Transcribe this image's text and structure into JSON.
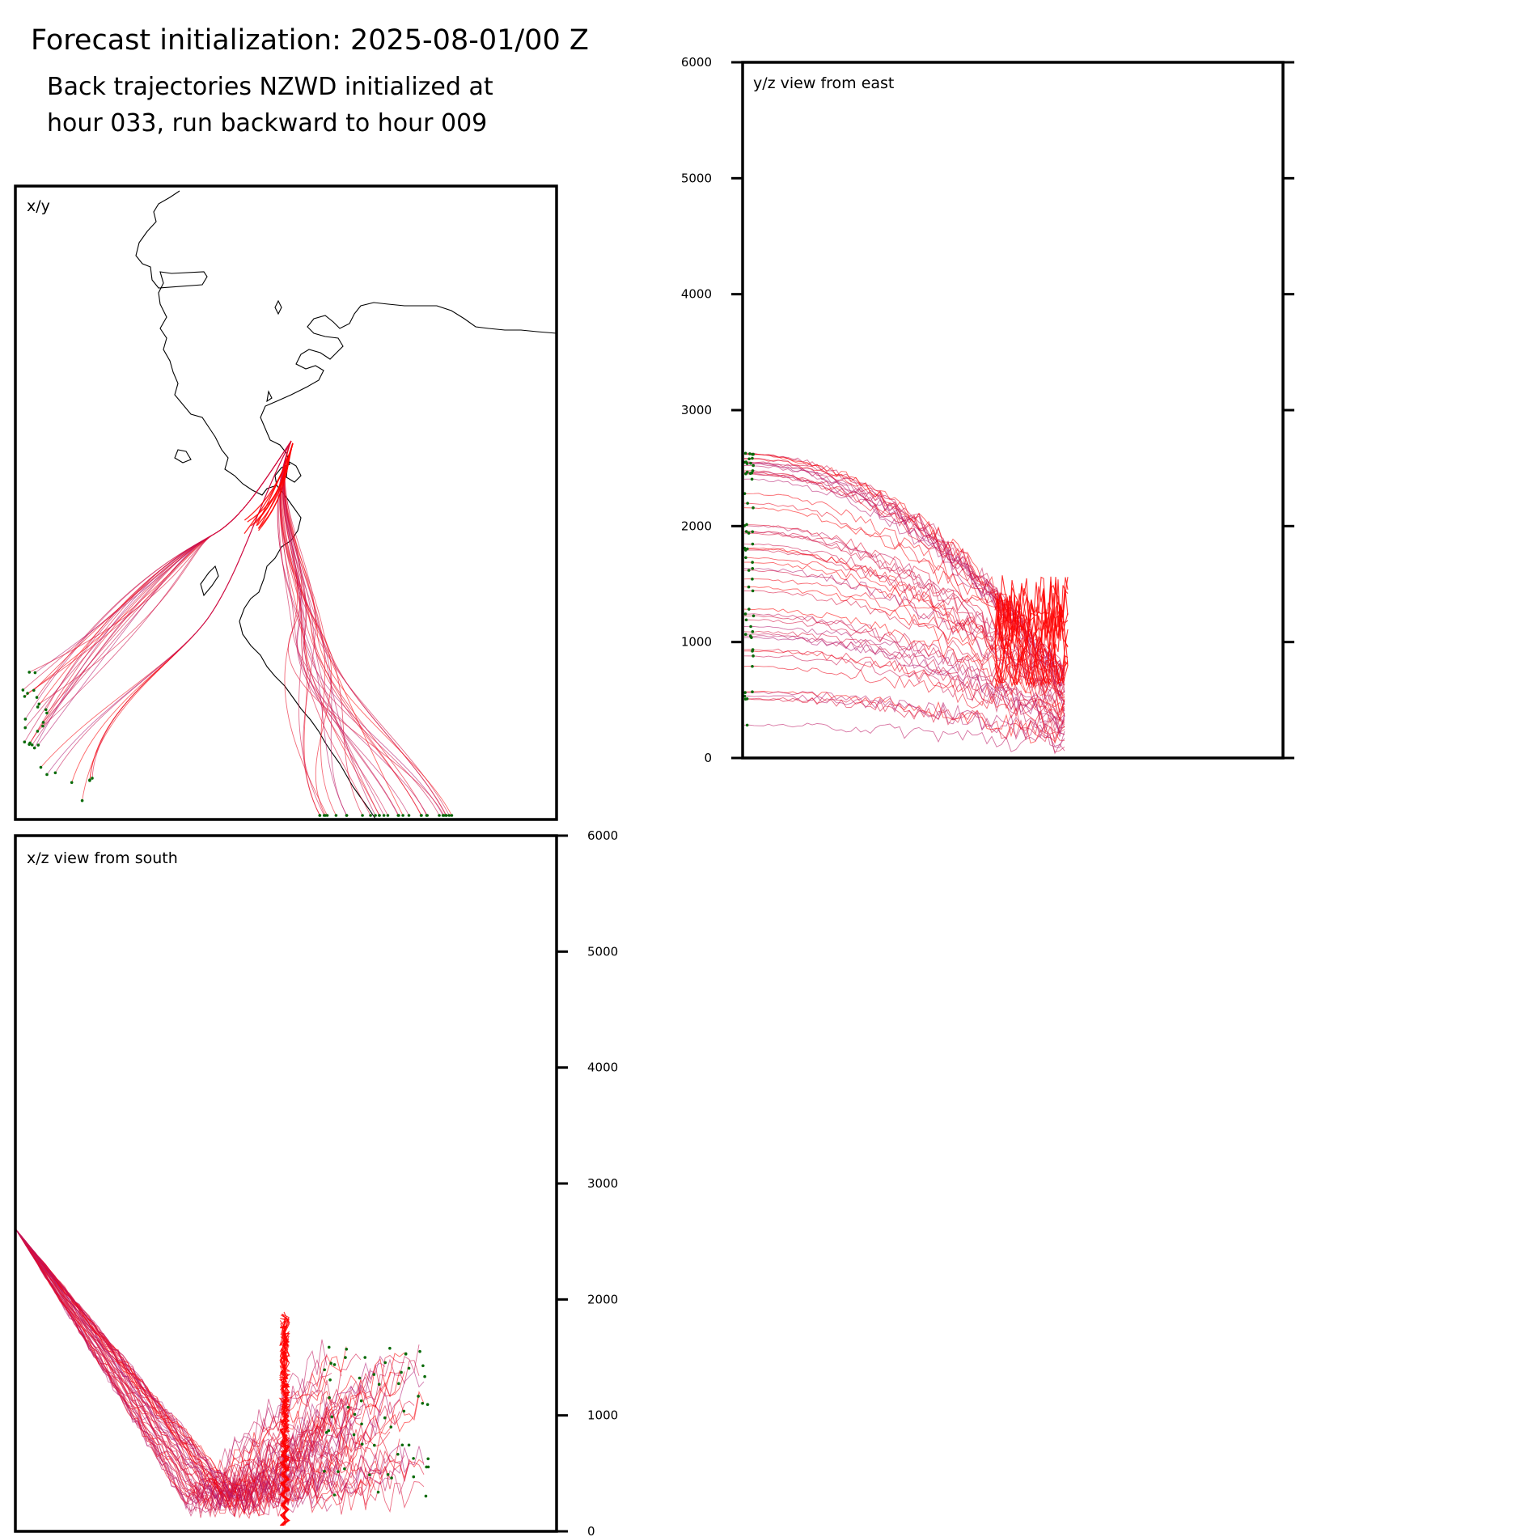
{
  "title": "Forecast initialization: 2025-08-01/00 Z",
  "subtitle_line1": "Back trajectories NZWD initialized at",
  "subtitle_line2": "hour 033, run backward to hour 009",
  "colors": {
    "trajectory_recent": "#ff0000",
    "trajectory_old": "#a0208c",
    "start_marker": "#0a6b0a",
    "coastline": "#000000",
    "axes": "#000000"
  },
  "chart_data": [
    {
      "type": "line",
      "panel": "x/y",
      "label": "x/y",
      "axes_ticks_shown": false,
      "layers": [
        "coastline",
        "trajectories",
        "start-markers"
      ],
      "trajectory_summary": "about 60 back trajectories converging on NZWD; color fades from red (recent) to purple (older)"
    },
    {
      "type": "line",
      "panel": "y/z",
      "label": "y/z view from east",
      "ylim": [
        0,
        6000
      ],
      "yticks": [
        0,
        1000,
        2000,
        3000,
        4000,
        5000,
        6000
      ],
      "ytick_labels": [
        "0",
        "1000",
        "2000",
        "3000",
        "4000",
        "5000",
        "6000"
      ],
      "ylabel_side": "left",
      "height_range_of_trajectories": [
        30,
        2800
      ]
    },
    {
      "type": "line",
      "panel": "x/z",
      "label": "x/z view from south",
      "ylim": [
        0,
        6000
      ],
      "yticks": [
        0,
        1000,
        2000,
        3000,
        4000,
        5000,
        6000
      ],
      "ytick_labels": [
        "0",
        "1000",
        "2000",
        "3000",
        "4000",
        "5000",
        "6000"
      ],
      "ylabel_side": "right",
      "height_range_of_trajectories": [
        30,
        2800
      ]
    }
  ]
}
